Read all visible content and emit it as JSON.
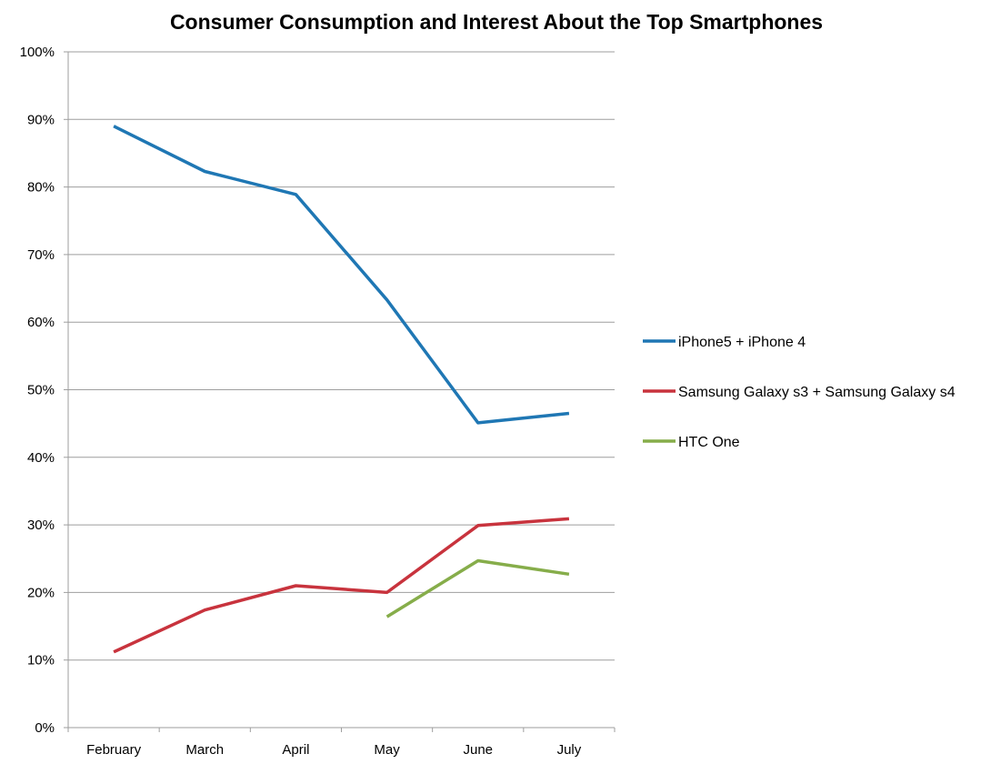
{
  "chart_data": {
    "type": "line",
    "title": "Consumer Consumption and Interest About the Top Smartphones",
    "xlabel": "",
    "ylabel": "",
    "categories": [
      "February",
      "March",
      "April",
      "May",
      "June",
      "July"
    ],
    "y_ticks": [
      "0%",
      "10%",
      "20%",
      "30%",
      "40%",
      "50%",
      "60%",
      "70%",
      "80%",
      "90%",
      "100%"
    ],
    "ylim": [
      0,
      100
    ],
    "grid": true,
    "legend_position": "right",
    "series": [
      {
        "name": "iPhone5 + iPhone 4",
        "color": "#1f77b4",
        "values": [
          89,
          82.3,
          78.9,
          63.3,
          45.1,
          46.5
        ]
      },
      {
        "name": "Samsung Galaxy s3 + Samsung Galaxy s4",
        "color": "#c8333d",
        "values": [
          11.2,
          17.4,
          21.0,
          20.0,
          29.9,
          30.9
        ]
      },
      {
        "name": "HTC One",
        "color": "#86ad4a",
        "values": [
          null,
          null,
          null,
          16.4,
          24.7,
          22.7
        ]
      }
    ]
  }
}
